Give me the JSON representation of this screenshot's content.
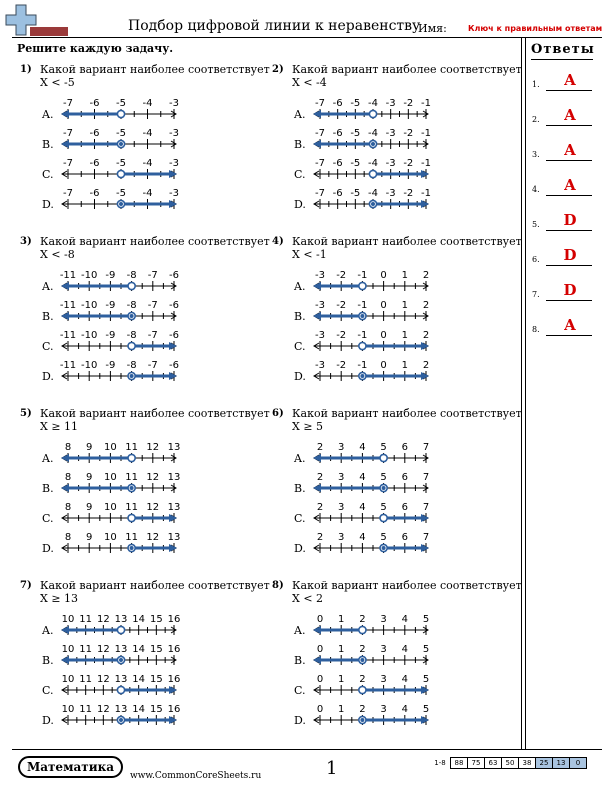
{
  "header": {
    "title": "Подбор цифровой линии к неравенству",
    "name_label": "Имя:",
    "answer_key": "Ключ к правильным ответам"
  },
  "instructions": "Решите каждую задачу.",
  "answers_panel": {
    "title": "Ответы",
    "items": [
      {
        "num": "1.",
        "val": "A"
      },
      {
        "num": "2.",
        "val": "A"
      },
      {
        "num": "3.",
        "val": "A"
      },
      {
        "num": "4.",
        "val": "A"
      },
      {
        "num": "5.",
        "val": "D"
      },
      {
        "num": "6.",
        "val": "D"
      },
      {
        "num": "7.",
        "val": "D"
      },
      {
        "num": "8.",
        "val": "A"
      }
    ]
  },
  "problems": [
    {
      "num": "1)",
      "text": "Какой вариант наиболее соответствует X < -5",
      "ticks": [
        "-7",
        "-6",
        "-5",
        "-4",
        "-3"
      ],
      "point": 2,
      "options": [
        {
          "label": "A.",
          "fill": false,
          "dir": "left"
        },
        {
          "label": "B.",
          "fill": true,
          "dir": "left"
        },
        {
          "label": "C.",
          "fill": false,
          "dir": "right"
        },
        {
          "label": "D.",
          "fill": true,
          "dir": "right"
        }
      ]
    },
    {
      "num": "2)",
      "text": "Какой вариант наиболее соответствует X < -4",
      "ticks": [
        "-7",
        "-6",
        "-5",
        "-4",
        "-3",
        "-2",
        "-1"
      ],
      "point": 3,
      "options": [
        {
          "label": "A.",
          "fill": false,
          "dir": "left"
        },
        {
          "label": "B.",
          "fill": true,
          "dir": "left"
        },
        {
          "label": "C.",
          "fill": false,
          "dir": "right"
        },
        {
          "label": "D.",
          "fill": true,
          "dir": "right"
        }
      ]
    },
    {
      "num": "3)",
      "text": "Какой вариант наиболее соответствует X < -8",
      "ticks": [
        "-11",
        "-10",
        "-9",
        "-8",
        "-7",
        "-6"
      ],
      "point": 3,
      "options": [
        {
          "label": "A.",
          "fill": false,
          "dir": "left"
        },
        {
          "label": "B.",
          "fill": true,
          "dir": "left"
        },
        {
          "label": "C.",
          "fill": false,
          "dir": "right"
        },
        {
          "label": "D.",
          "fill": true,
          "dir": "right"
        }
      ]
    },
    {
      "num": "4)",
      "text": "Какой вариант наиболее соответствует X < -1",
      "ticks": [
        "-3",
        "-2",
        "-1",
        "0",
        "1",
        "2"
      ],
      "point": 2,
      "options": [
        {
          "label": "A.",
          "fill": false,
          "dir": "left"
        },
        {
          "label": "B.",
          "fill": true,
          "dir": "left"
        },
        {
          "label": "C.",
          "fill": false,
          "dir": "right"
        },
        {
          "label": "D.",
          "fill": true,
          "dir": "right"
        }
      ]
    },
    {
      "num": "5)",
      "text": "Какой вариант наиболее соответствует X ≥ 11",
      "ticks": [
        "8",
        "9",
        "10",
        "11",
        "12",
        "13"
      ],
      "point": 3,
      "options": [
        {
          "label": "A.",
          "fill": false,
          "dir": "left"
        },
        {
          "label": "B.",
          "fill": true,
          "dir": "left"
        },
        {
          "label": "C.",
          "fill": false,
          "dir": "right"
        },
        {
          "label": "D.",
          "fill": true,
          "dir": "right"
        }
      ]
    },
    {
      "num": "6)",
      "text": "Какой вариант наиболее соответствует X ≥ 5",
      "ticks": [
        "2",
        "3",
        "4",
        "5",
        "6",
        "7"
      ],
      "point": 3,
      "options": [
        {
          "label": "A.",
          "fill": false,
          "dir": "left"
        },
        {
          "label": "B.",
          "fill": true,
          "dir": "left"
        },
        {
          "label": "C.",
          "fill": false,
          "dir": "right"
        },
        {
          "label": "D.",
          "fill": true,
          "dir": "right"
        }
      ]
    },
    {
      "num": "7)",
      "text": "Какой вариант наиболее соответствует X ≥ 13",
      "ticks": [
        "10",
        "11",
        "12",
        "13",
        "14",
        "15",
        "16"
      ],
      "point": 3,
      "options": [
        {
          "label": "A.",
          "fill": false,
          "dir": "left"
        },
        {
          "label": "B.",
          "fill": true,
          "dir": "left"
        },
        {
          "label": "C.",
          "fill": false,
          "dir": "right"
        },
        {
          "label": "D.",
          "fill": true,
          "dir": "right"
        }
      ]
    },
    {
      "num": "8)",
      "text": "Какой вариант наиболее соответствует X < 2",
      "ticks": [
        "0",
        "1",
        "2",
        "3",
        "4",
        "5"
      ],
      "point": 2,
      "options": [
        {
          "label": "A.",
          "fill": false,
          "dir": "left"
        },
        {
          "label": "B.",
          "fill": true,
          "dir": "left"
        },
        {
          "label": "C.",
          "fill": false,
          "dir": "right"
        },
        {
          "label": "D.",
          "fill": true,
          "dir": "right"
        }
      ]
    }
  ],
  "footer": {
    "brand": "Математика",
    "site": "www.CommonCoreSheets.ru",
    "page": "1",
    "score_label": "1-8",
    "scores": [
      "88",
      "75",
      "63",
      "50",
      "38",
      "25",
      "13",
      "0"
    ],
    "score_shaded": [
      false,
      false,
      false,
      false,
      false,
      true,
      true,
      true
    ]
  },
  "colors": {
    "line": "#2e5f9e",
    "answer": "#d40000",
    "logo_blue": "#9cc0e0",
    "logo_red": "#9a3a3a"
  }
}
